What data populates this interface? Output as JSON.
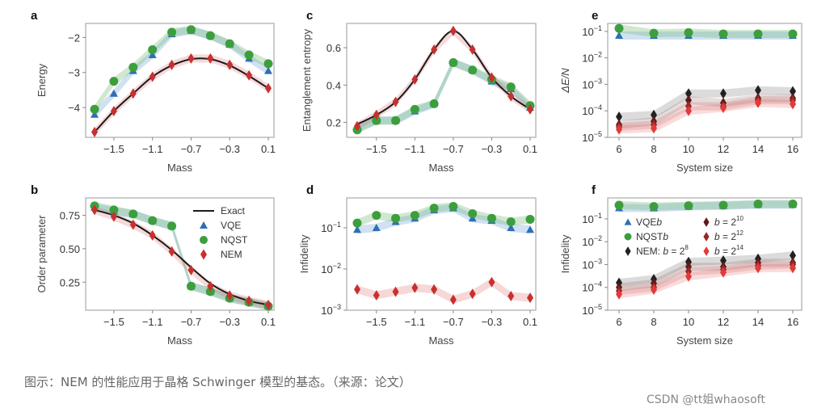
{
  "colors": {
    "VQE": "#2f6fb3",
    "NQST": "#3d9e3d",
    "NEM": "#c83030",
    "Exact": "#1a1a1a",
    "NEM_b8": "#222222",
    "NEM_b10": "#5c1b1b",
    "NEM_b12": "#992727",
    "NEM_b14": "#e23a3a"
  },
  "caption": "图示：NEM 的性能应用于晶格 Schwinger 模型的基态。（来源：论文）",
  "watermark": "CSDN @tt姐whaosoft",
  "chart_data": [
    {
      "panel": "a",
      "type": "line",
      "xlabel": "Mass",
      "ylabel": "Energy",
      "x": [
        -1.7,
        -1.5,
        -1.3,
        -1.1,
        -0.9,
        -0.7,
        -0.5,
        -0.3,
        -0.1,
        0.1
      ],
      "xticks": [
        "-1.5",
        "-1.1",
        "-0.7",
        "-0.3",
        "0.1"
      ],
      "yticks": [
        "-2",
        "-3",
        "-4"
      ],
      "ylim": [
        -4.85,
        -1.6
      ],
      "yscale": "linear",
      "series": [
        {
          "name": "Exact",
          "values": [
            -4.7,
            -4.1,
            -3.6,
            -3.12,
            -2.8,
            -2.62,
            -2.62,
            -2.8,
            -3.1,
            -3.45
          ]
        },
        {
          "name": "VQE",
          "values": [
            -4.2,
            -3.6,
            -2.95,
            -2.5,
            -1.9,
            -1.8,
            -1.95,
            -2.2,
            -2.6,
            -2.95
          ]
        },
        {
          "name": "NQST",
          "values": [
            -4.05,
            -3.25,
            -2.85,
            -2.35,
            -1.85,
            -1.78,
            -1.95,
            -2.18,
            -2.5,
            -2.75
          ]
        },
        {
          "name": "NEM",
          "values": [
            -4.7,
            -4.1,
            -3.6,
            -3.12,
            -2.78,
            -2.6,
            -2.6,
            -2.78,
            -3.08,
            -3.45
          ]
        }
      ]
    },
    {
      "panel": "c",
      "type": "line",
      "xlabel": "Mass",
      "ylabel": "Entanglement entropy",
      "x": [
        -1.7,
        -1.5,
        -1.3,
        -1.1,
        -0.9,
        -0.7,
        -0.5,
        -0.3,
        -0.1,
        0.1
      ],
      "xticks": [
        "-1.5",
        "-1.1",
        "-0.7",
        "-0.3",
        "0.1"
      ],
      "yticks": [
        "0.6",
        "0.4",
        "0.2"
      ],
      "ylim": [
        0.12,
        0.73
      ],
      "yscale": "linear",
      "series": [
        {
          "name": "Exact",
          "values": [
            0.19,
            0.24,
            0.31,
            0.43,
            0.59,
            0.69,
            0.59,
            0.44,
            0.34,
            0.27
          ]
        },
        {
          "name": "VQE",
          "values": [
            0.17,
            0.21,
            0.21,
            0.26,
            0.3,
            0.52,
            0.48,
            0.42,
            0.38,
            0.28
          ]
        },
        {
          "name": "NQST",
          "values": [
            0.16,
            0.21,
            0.21,
            0.27,
            0.3,
            0.52,
            0.48,
            0.43,
            0.39,
            0.29
          ]
        },
        {
          "name": "NEM",
          "values": [
            0.18,
            0.24,
            0.31,
            0.43,
            0.59,
            0.69,
            0.59,
            0.44,
            0.34,
            0.27
          ]
        }
      ]
    },
    {
      "panel": "e",
      "type": "line",
      "xlabel": "System size",
      "ylabel": "ΔE/N",
      "x": [
        6,
        8,
        10,
        12,
        14,
        16
      ],
      "xticks": [
        "6",
        "8",
        "10",
        "12",
        "14",
        "16"
      ],
      "yticks": [
        "-1",
        "-2",
        "-3",
        "-4",
        "-5"
      ],
      "ylim": [
        1e-05,
        0.2
      ],
      "yscale": "log",
      "series": [
        {
          "name": "VQE",
          "values": [
            0.07,
            0.07,
            0.07,
            0.07,
            0.07,
            0.07
          ]
        },
        {
          "name": "NQST",
          "values": [
            0.13,
            0.085,
            0.09,
            0.08,
            0.08,
            0.08
          ]
        },
        {
          "name": "NEM_b8",
          "values": [
            6e-05,
            7e-05,
            0.00045,
            0.00045,
            0.0006,
            0.00055
          ]
        },
        {
          "name": "NEM_b10",
          "values": [
            3e-05,
            4e-05,
            0.00025,
            0.0002,
            0.0003,
            0.0003
          ]
        },
        {
          "name": "NEM_b12",
          "values": [
            2.5e-05,
            3e-05,
            0.00015,
            0.00015,
            0.00025,
            0.00025
          ]
        },
        {
          "name": "NEM_b14",
          "values": [
            2e-05,
            2.2e-05,
            0.0001,
            0.00013,
            0.0002,
            0.00018
          ]
        }
      ]
    },
    {
      "panel": "b",
      "type": "line",
      "xlabel": "Mass",
      "ylabel": "Order parameter",
      "x": [
        -1.7,
        -1.5,
        -1.3,
        -1.1,
        -0.9,
        -0.7,
        -0.5,
        -0.3,
        -0.1,
        0.1
      ],
      "xticks": [
        "-1.5",
        "-1.1",
        "-0.7",
        "-0.3",
        "0.1"
      ],
      "yticks": [
        "0.75",
        "0.50",
        "0.25"
      ],
      "ylim": [
        0.04,
        0.88
      ],
      "yscale": "linear",
      "legend": [
        {
          "label": "Exact"
        },
        {
          "label": "VQE"
        },
        {
          "label": "NQST"
        },
        {
          "label": "NEM"
        }
      ],
      "series": [
        {
          "name": "Exact",
          "values": [
            0.79,
            0.75,
            0.69,
            0.6,
            0.49,
            0.36,
            0.24,
            0.16,
            0.11,
            0.08
          ]
        },
        {
          "name": "VQE",
          "values": [
            0.81,
            0.78,
            0.76,
            0.71,
            0.67,
            0.22,
            0.18,
            0.13,
            0.1,
            0.07
          ]
        },
        {
          "name": "NQST",
          "values": [
            0.82,
            0.79,
            0.76,
            0.71,
            0.67,
            0.22,
            0.18,
            0.13,
            0.1,
            0.07
          ]
        },
        {
          "name": "NEM",
          "values": [
            0.79,
            0.74,
            0.68,
            0.6,
            0.48,
            0.34,
            0.22,
            0.15,
            0.11,
            0.08
          ]
        }
      ]
    },
    {
      "panel": "d",
      "type": "line",
      "xlabel": "Mass",
      "ylabel": "Infidelity",
      "x": [
        -1.7,
        -1.5,
        -1.3,
        -1.1,
        -0.9,
        -0.7,
        -0.5,
        -0.3,
        -0.1,
        0.1
      ],
      "xticks": [
        "-1.5",
        "-1.1",
        "-0.7",
        "-0.3",
        "0.1"
      ],
      "yticks": [
        "-1",
        "-2",
        "-3"
      ],
      "ylim": [
        0.001,
        0.53
      ],
      "yscale": "log",
      "series": [
        {
          "name": "VQE",
          "values": [
            0.09,
            0.1,
            0.14,
            0.17,
            0.27,
            0.3,
            0.17,
            0.15,
            0.1,
            0.09
          ]
        },
        {
          "name": "NQST",
          "values": [
            0.13,
            0.2,
            0.17,
            0.2,
            0.3,
            0.33,
            0.22,
            0.17,
            0.14,
            0.16
          ]
        },
        {
          "name": "NEM",
          "values": [
            0.0032,
            0.0023,
            0.0028,
            0.0035,
            0.0032,
            0.0018,
            0.0025,
            0.0048,
            0.0022,
            0.002
          ]
        }
      ]
    },
    {
      "panel": "f",
      "type": "line",
      "xlabel": "System size",
      "ylabel": "Infidelity",
      "x": [
        6,
        8,
        10,
        12,
        14,
        16
      ],
      "xticks": [
        "6",
        "8",
        "10",
        "12",
        "14",
        "16"
      ],
      "yticks": [
        "-1",
        "-2",
        "-3",
        "-4",
        "-5"
      ],
      "ylim": [
        1e-05,
        0.83
      ],
      "yscale": "log",
      "legend": [
        {
          "label": "VQE"
        },
        {
          "label": "NQST"
        },
        {
          "label": "NEM: b = 2",
          "sup": "8"
        },
        {
          "label": "b = 2",
          "sup": "10"
        },
        {
          "label": "b = 2",
          "sup": "12"
        },
        {
          "label": "b = 2",
          "sup": "14"
        }
      ],
      "series": [
        {
          "name": "VQE",
          "values": [
            0.3,
            0.3,
            0.35,
            0.38,
            0.42,
            0.42
          ]
        },
        {
          "name": "NQST",
          "values": [
            0.4,
            0.35,
            0.38,
            0.4,
            0.45,
            0.45
          ]
        },
        {
          "name": "NEM_b8",
          "values": [
            0.00016,
            0.00023,
            0.0013,
            0.0015,
            0.0018,
            0.0025
          ]
        },
        {
          "name": "NEM_b10",
          "values": [
            0.0001,
            0.00015,
            0.0008,
            0.0008,
            0.0012,
            0.0012
          ]
        },
        {
          "name": "NEM_b12",
          "values": [
            7e-05,
            0.0001,
            0.0005,
            0.0006,
            0.0009,
            0.001
          ]
        },
        {
          "name": "NEM_b14",
          "values": [
            5e-05,
            8e-05,
            0.0003,
            0.00045,
            0.0007,
            0.0007
          ]
        }
      ]
    }
  ]
}
